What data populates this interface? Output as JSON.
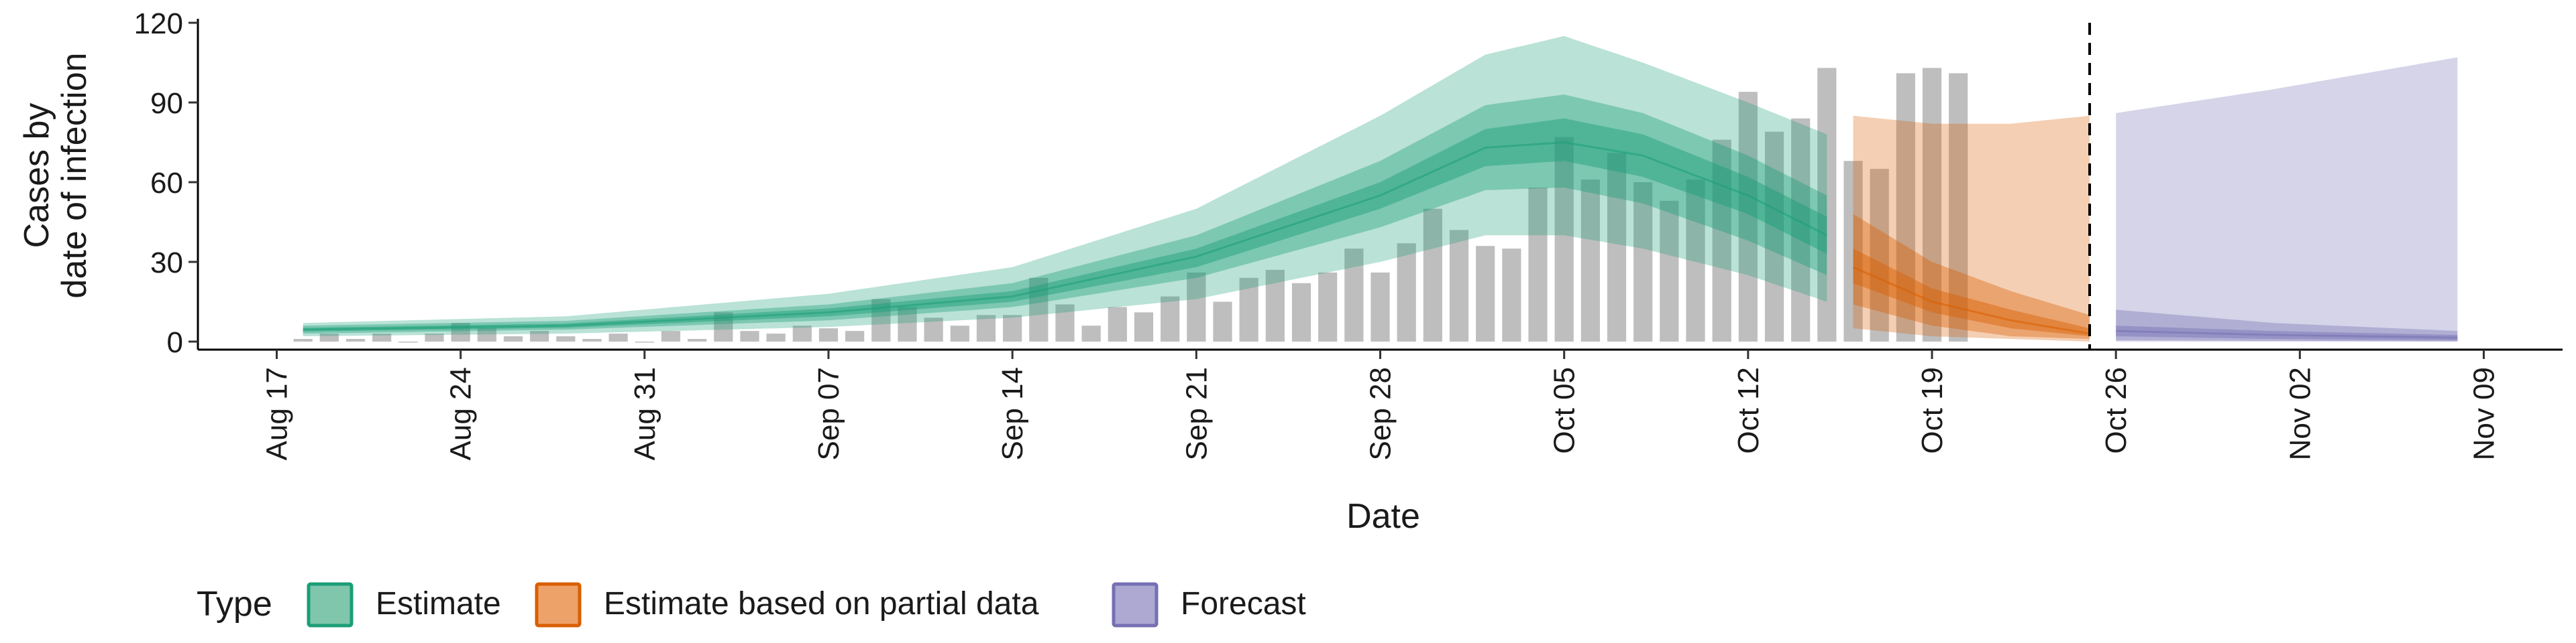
{
  "chart_data": {
    "type": "area",
    "xlabel": "Date",
    "ylabel": [
      "Cases by",
      "date of infection"
    ],
    "ylim": [
      0,
      120
    ],
    "y_ticks": [
      0,
      30,
      60,
      90,
      120
    ],
    "x_range": [
      "2020-08-14",
      "2020-11-12"
    ],
    "x_ticks": [
      {
        "date": "2020-08-17",
        "label": "Aug 17"
      },
      {
        "date": "2020-08-24",
        "label": "Aug 24"
      },
      {
        "date": "2020-08-31",
        "label": "Aug 31"
      },
      {
        "date": "2020-09-07",
        "label": "Sep 07"
      },
      {
        "date": "2020-09-14",
        "label": "Sep 14"
      },
      {
        "date": "2020-09-21",
        "label": "Sep 21"
      },
      {
        "date": "2020-09-28",
        "label": "Sep 28"
      },
      {
        "date": "2020-10-05",
        "label": "Oct 05"
      },
      {
        "date": "2020-10-12",
        "label": "Oct 12"
      },
      {
        "date": "2020-10-19",
        "label": "Oct 19"
      },
      {
        "date": "2020-10-26",
        "label": "Oct 26"
      },
      {
        "date": "2020-11-02",
        "label": "Nov 02"
      },
      {
        "date": "2020-11-09",
        "label": "Nov 09"
      }
    ],
    "forecast_divider_date": "2020-10-25",
    "grid": false,
    "legend": {
      "position": "bottom-left",
      "title": "Type",
      "entries": [
        {
          "label": "Estimate",
          "fill": "#7fc6ad",
          "stroke": "#1b9e77"
        },
        {
          "label": "Estimate based on partial data",
          "fill": "#eda26a",
          "stroke": "#d95f02"
        },
        {
          "label": "Forecast",
          "fill": "#aea9d3",
          "stroke": "#7570b3"
        }
      ]
    },
    "colors": {
      "Estimate": "#1b9e77",
      "Estimate based on partial data": "#d95f02",
      "Forecast": "#7570b3",
      "bars": "#bebebe"
    },
    "bars": {
      "start_date": "2020-08-18",
      "values": [
        1,
        3,
        1,
        3,
        0,
        3,
        7,
        5,
        2,
        4,
        2,
        1,
        3,
        0,
        4,
        1,
        11,
        4,
        3,
        6,
        5,
        4,
        16,
        13,
        9,
        6,
        10,
        10,
        24,
        14,
        6,
        13,
        11,
        17,
        26,
        15,
        24,
        27,
        22,
        26,
        35,
        26,
        37,
        50,
        42,
        36,
        35,
        58,
        77,
        61,
        71,
        60,
        53,
        61,
        76,
        94,
        79,
        84,
        103,
        68,
        65,
        101,
        103,
        101
      ]
    },
    "series": [
      {
        "name": "Estimate",
        "start_date": "2020-08-18",
        "end_date": "2020-10-15",
        "knots": [
          {
            "date": "2020-08-18",
            "median": 4.5,
            "q25": [
              3.8,
              5.2
            ],
            "q50": [
              3.0,
              6.0
            ],
            "q90": [
              2.0,
              7.0
            ]
          },
          {
            "date": "2020-08-28",
            "median": 6.0,
            "q25": [
              5.2,
              6.8
            ],
            "q50": [
              4.5,
              7.8
            ],
            "q90": [
              3.0,
              9.5
            ]
          },
          {
            "date": "2020-09-07",
            "median": 11,
            "q25": [
              9.5,
              12.5
            ],
            "q50": [
              8.0,
              14
            ],
            "q90": [
              5.5,
              18
            ]
          },
          {
            "date": "2020-09-14",
            "median": 17,
            "q25": [
              15,
              19
            ],
            "q50": [
              13,
              22
            ],
            "q90": [
              9.0,
              28
            ]
          },
          {
            "date": "2020-09-21",
            "median": 32,
            "q25": [
              28,
              35
            ],
            "q50": [
              24,
              40
            ],
            "q90": [
              16,
              50
            ]
          },
          {
            "date": "2020-09-28",
            "median": 55,
            "q25": [
              50,
              60
            ],
            "q50": [
              43,
              68
            ],
            "q90": [
              30,
              85
            ]
          },
          {
            "date": "2020-10-02",
            "median": 73,
            "q25": [
              66,
              80
            ],
            "q50": [
              57,
              89
            ],
            "q90": [
              40,
              108
            ]
          },
          {
            "date": "2020-10-05",
            "median": 75,
            "q25": [
              68,
              84
            ],
            "q50": [
              58,
              93
            ],
            "q90": [
              40,
              115
            ]
          },
          {
            "date": "2020-10-08",
            "median": 70,
            "q25": [
              62,
              78
            ],
            "q50": [
              52,
              86
            ],
            "q90": [
              35,
              105
            ]
          },
          {
            "date": "2020-10-12",
            "median": 55,
            "q25": [
              48,
              62
            ],
            "q50": [
              38,
              70
            ],
            "q90": [
              25,
              90
            ]
          },
          {
            "date": "2020-10-15",
            "median": 40,
            "q25": [
              33,
              47
            ],
            "q50": [
              25,
              55
            ],
            "q90": [
              15,
              78
            ]
          }
        ]
      },
      {
        "name": "Estimate based on partial data",
        "start_date": "2020-10-16",
        "end_date": "2020-10-25",
        "knots": [
          {
            "date": "2020-10-16",
            "median": 28,
            "q25": [
              22,
              35
            ],
            "q50": [
              14,
              48
            ],
            "q90": [
              5,
              85
            ]
          },
          {
            "date": "2020-10-19",
            "median": 15,
            "q25": [
              11,
              20
            ],
            "q50": [
              6,
              30
            ],
            "q90": [
              2,
              82
            ]
          },
          {
            "date": "2020-10-22",
            "median": 8,
            "q25": [
              5,
              12
            ],
            "q50": [
              2,
              19
            ],
            "q90": [
              1,
              82
            ]
          },
          {
            "date": "2020-10-25",
            "median": 3,
            "q25": [
              2,
              5
            ],
            "q50": [
              1,
              10
            ],
            "q90": [
              0,
              85
            ]
          }
        ]
      },
      {
        "name": "Forecast",
        "start_date": "2020-10-26",
        "end_date": "2020-11-08",
        "knots": [
          {
            "date": "2020-10-26",
            "median": 4,
            "q25": [
              2,
              6
            ],
            "q50": [
              0.5,
              12
            ],
            "q90": [
              0,
              86
            ]
          },
          {
            "date": "2020-11-01",
            "median": 2.5,
            "q25": [
              1,
              4
            ],
            "q50": [
              0.3,
              7
            ],
            "q90": [
              0,
              95
            ]
          },
          {
            "date": "2020-11-08",
            "median": 1.5,
            "q25": [
              0.5,
              2.5
            ],
            "q50": [
              0.1,
              4
            ],
            "q90": [
              0,
              107
            ]
          }
        ]
      }
    ]
  }
}
